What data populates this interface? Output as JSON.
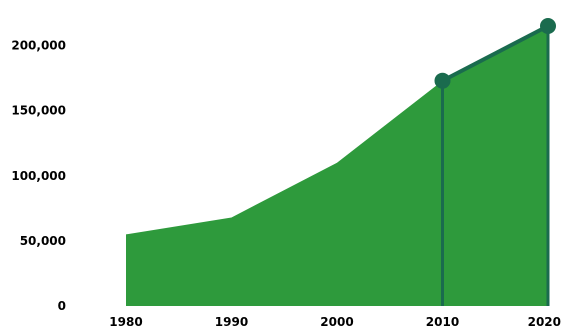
{
  "chart_data": {
    "type": "area",
    "x": [
      1980,
      1990,
      2000,
      2010,
      2020
    ],
    "x_tick_labels": [
      "1980",
      "1990",
      "2000",
      "2010",
      "2020"
    ],
    "series": [
      {
        "values": [
          55000,
          68000,
          110000,
          173000,
          215000
        ]
      }
    ],
    "y_ticks": [
      0,
      50000,
      100000,
      150000,
      200000
    ],
    "y_tick_labels": [
      "0",
      "50,000",
      "100,000",
      "150,000",
      "200,000"
    ],
    "xlim": [
      1980,
      2020
    ],
    "ylim": [
      0,
      225000
    ],
    "grid": false,
    "highlight_x": [
      2010,
      2020
    ],
    "colors": {
      "area": "#2e9a3c",
      "highlight": "#1a6b4e",
      "text": "#000000"
    }
  }
}
